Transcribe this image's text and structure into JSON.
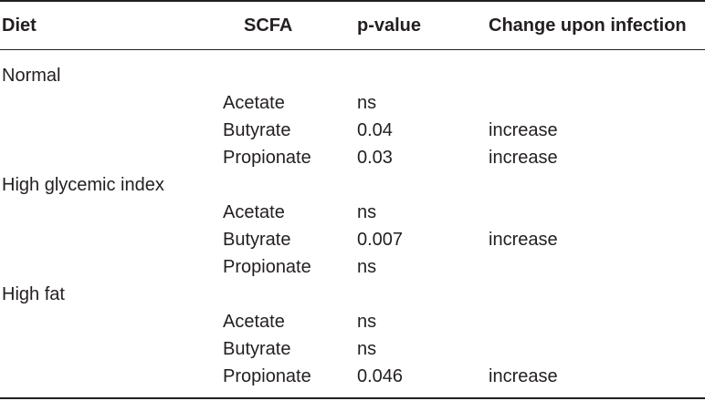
{
  "table": {
    "headers": {
      "diet": "Diet",
      "scfa": "SCFA",
      "pvalue": "p-value",
      "change": "Change upon infection"
    },
    "groups": [
      {
        "diet": "Normal",
        "rows": [
          {
            "scfa": "Acetate",
            "pvalue": "ns",
            "change": ""
          },
          {
            "scfa": "Butyrate",
            "pvalue": "0.04",
            "change": "increase"
          },
          {
            "scfa": "Propionate",
            "pvalue": "0.03",
            "change": "increase"
          }
        ]
      },
      {
        "diet": "High glycemic index",
        "rows": [
          {
            "scfa": "Acetate",
            "pvalue": "ns",
            "change": ""
          },
          {
            "scfa": "Butyrate",
            "pvalue": "0.007",
            "change": "increase"
          },
          {
            "scfa": "Propionate",
            "pvalue": "ns",
            "change": ""
          }
        ]
      },
      {
        "diet": "High fat",
        "rows": [
          {
            "scfa": "Acetate",
            "pvalue": "ns",
            "change": ""
          },
          {
            "scfa": "Butyrate",
            "pvalue": "ns",
            "change": ""
          },
          {
            "scfa": "Propionate",
            "pvalue": "0.046",
            "change": "increase"
          }
        ]
      }
    ]
  }
}
